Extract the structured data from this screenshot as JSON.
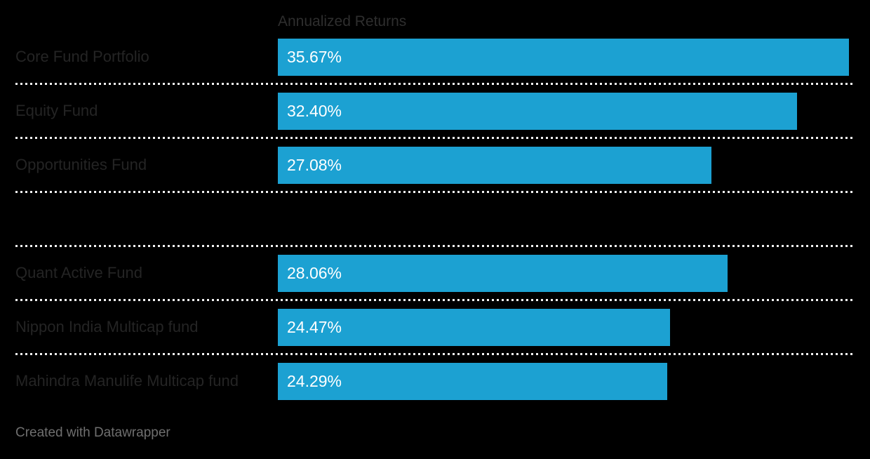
{
  "chart": {
    "column_header": "Annualized Returns"
  },
  "chart_data": {
    "type": "bar",
    "orientation": "horizontal",
    "title": "",
    "column_header": "Annualized Returns",
    "categories": [
      "Core Fund Portfolio",
      "Equity Fund",
      "Opportunities Fund",
      "",
      "Quant Active Fund",
      "Nippon India Multicap fund",
      "Mahindra Manulife Multicap fund"
    ],
    "rows": [
      {
        "label": "Core Fund Portfolio",
        "value": 35.67,
        "display": "35.67%"
      },
      {
        "label": "Equity Fund",
        "value": 32.4,
        "display": "32.40%"
      },
      {
        "label": "Opportunities Fund",
        "value": 27.08,
        "display": "27.08%"
      },
      {
        "label": "",
        "value": null,
        "display": ""
      },
      {
        "label": "Quant Active Fund",
        "value": 28.06,
        "display": "28.06%"
      },
      {
        "label": "Nippon India Multicap fund",
        "value": 24.47,
        "display": "24.47%"
      },
      {
        "label": "Mahindra Manulife Multicap fund",
        "value": 24.29,
        "display": "24.29%"
      }
    ],
    "xlim": [
      0,
      36
    ],
    "bar_color": "#1CA1D2",
    "background_color": "#000000",
    "label_color": "#242424",
    "value_label_color": "#ffffff",
    "separator_style": "dotted",
    "grid": "off",
    "legend": "none"
  },
  "footer": {
    "attribution": "Created with Datawrapper"
  }
}
